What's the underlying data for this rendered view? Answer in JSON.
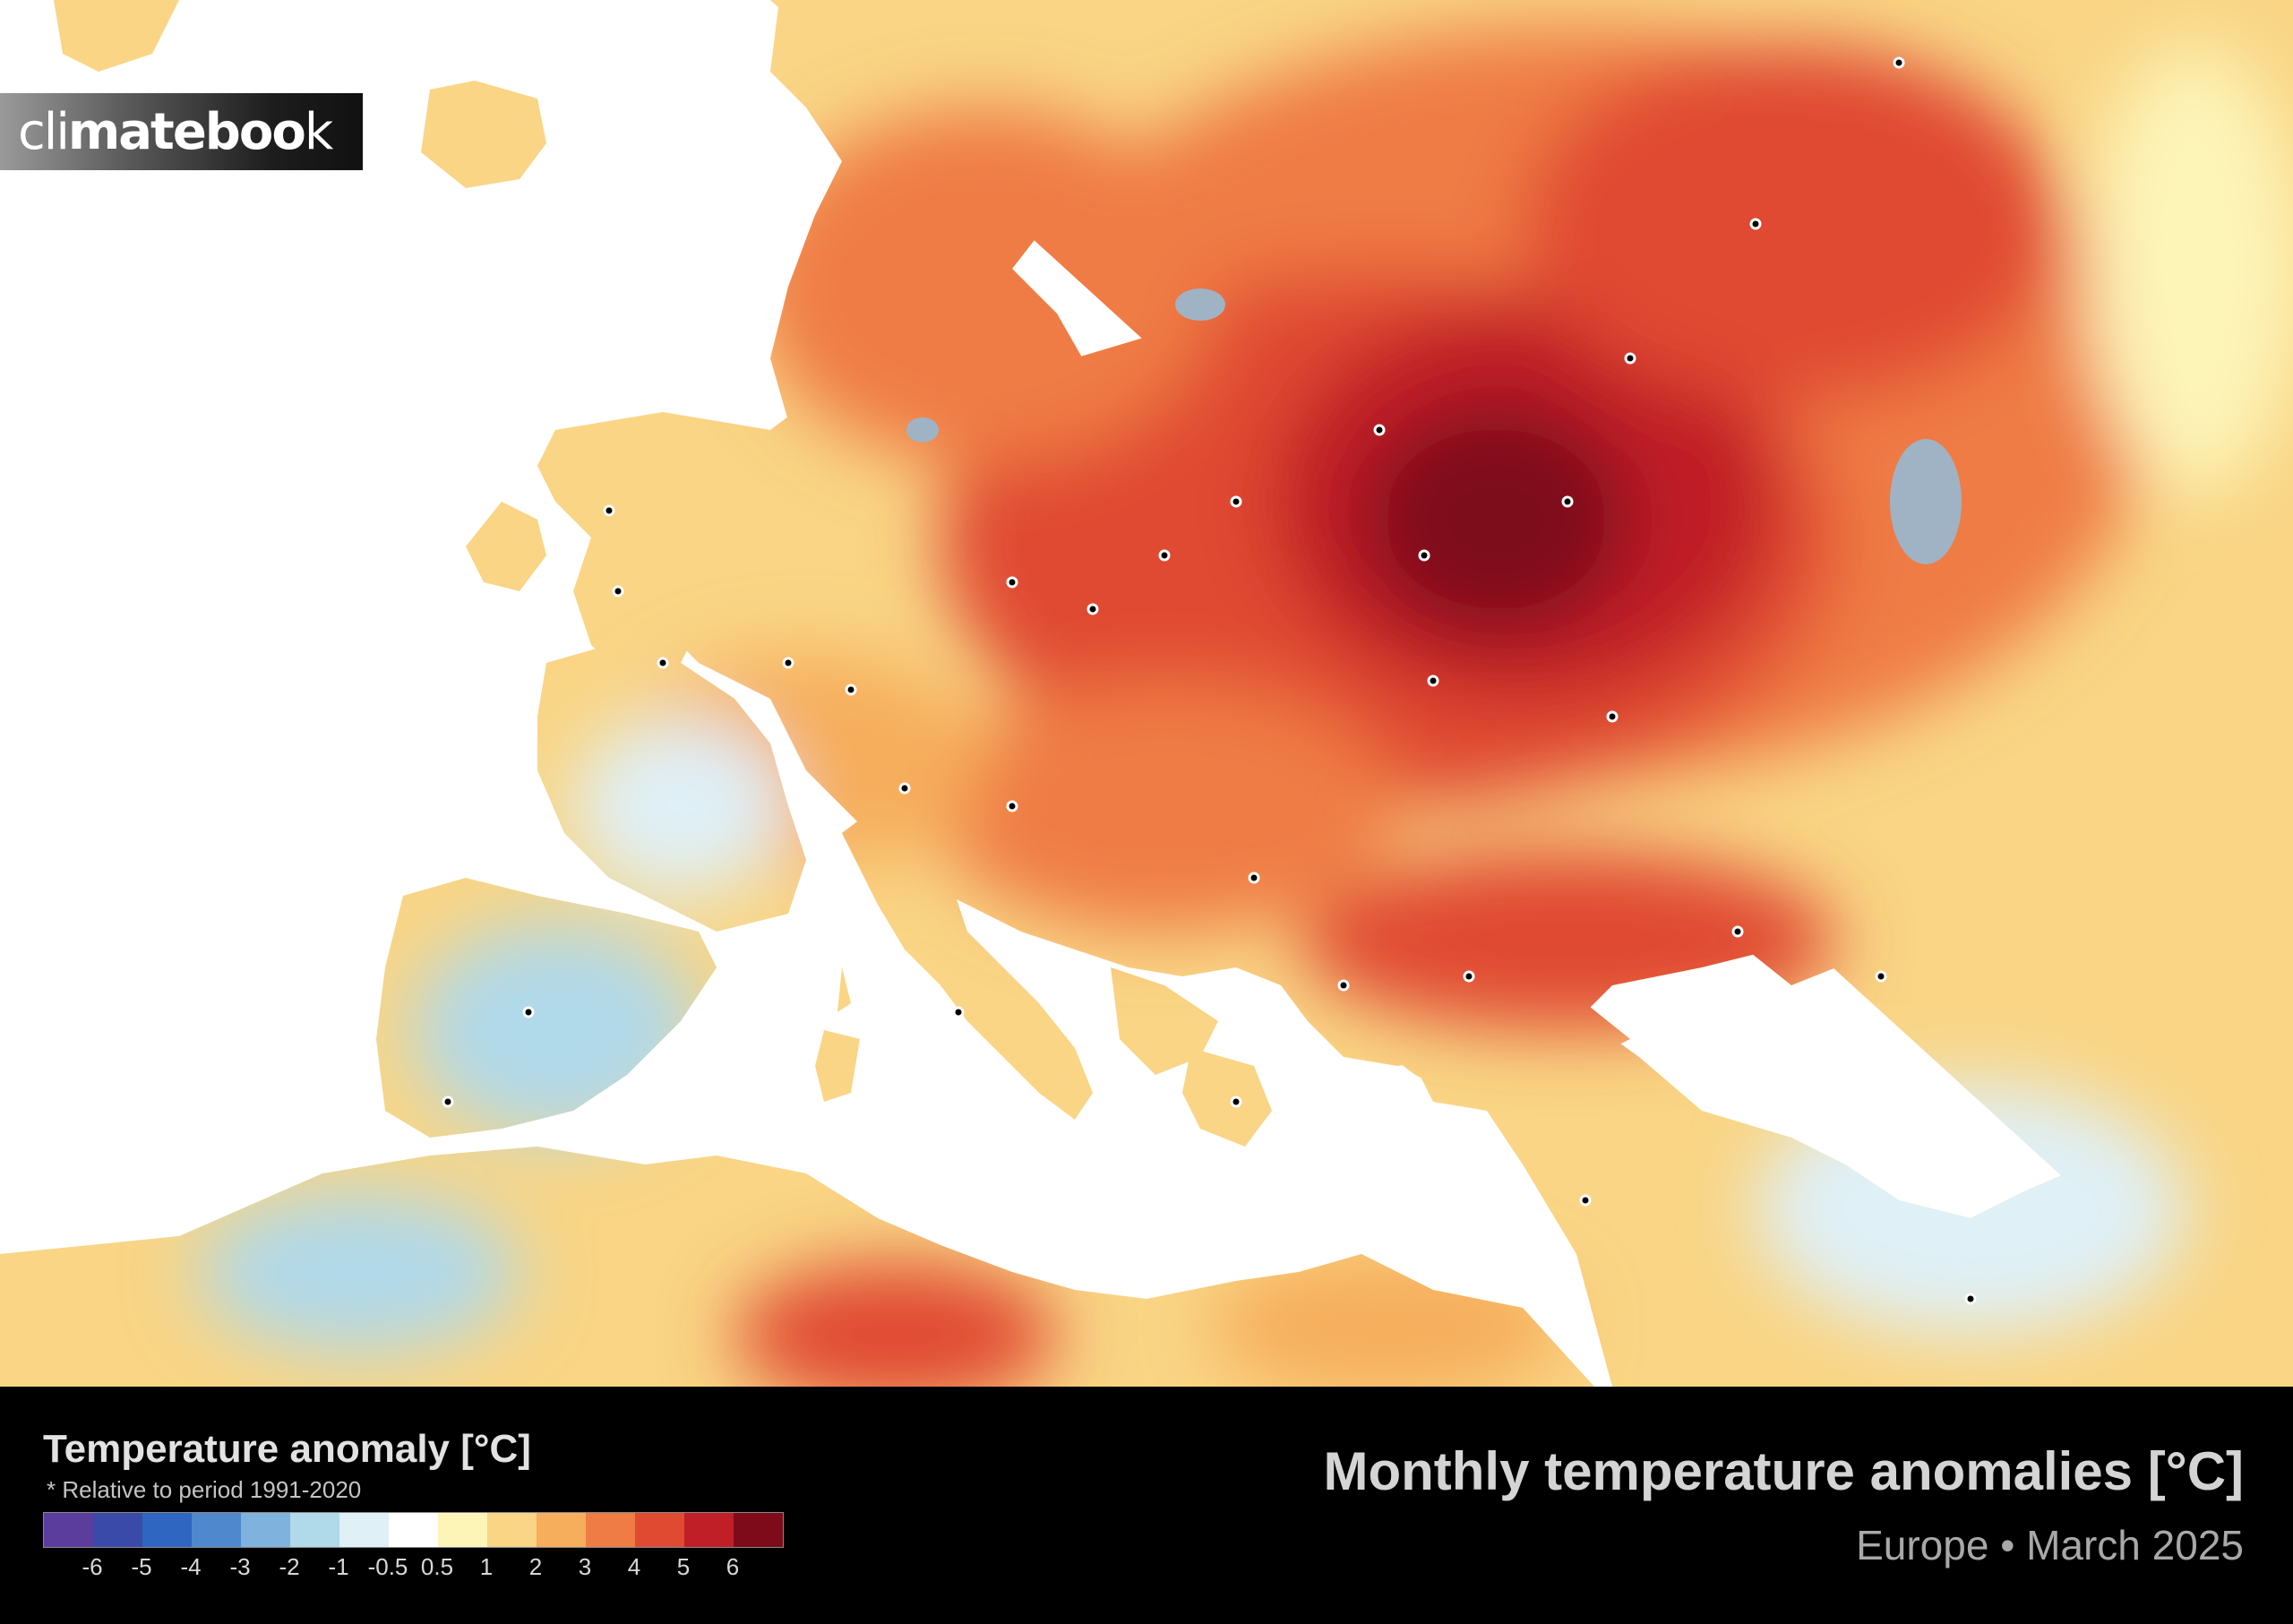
{
  "brand": {
    "logo_prefix": "cli",
    "logo_mid": "mate",
    "logo_suffix": "boo",
    "logo_end": "k"
  },
  "legend": {
    "title": "Temperature anomaly [°C]",
    "note": "* Relative to period 1991-2020",
    "swatches": [
      "#5b3d9e",
      "#3a4aa8",
      "#2f66c2",
      "#4f88cc",
      "#7fb3de",
      "#b0d9ea",
      "#dff0f7",
      "#ffffff",
      "#fdf4b8",
      "#f9d585",
      "#f6ad5c",
      "#ef7b45",
      "#e04a30",
      "#c01f28",
      "#7e0b1a"
    ],
    "ticks": [
      "-6",
      "-5",
      "-4",
      "-3",
      "-2",
      "-1",
      "-0.5",
      "0.5",
      "1",
      "2",
      "3",
      "4",
      "5",
      "6"
    ]
  },
  "title": "Monthly temperature anomalies [°C]",
  "subtitle": "Europe • March 2025",
  "colors": {
    "sea": "#ffffff",
    "footer": "#000000",
    "hot": "#c01f28",
    "cold": "#b0d9ea"
  }
}
